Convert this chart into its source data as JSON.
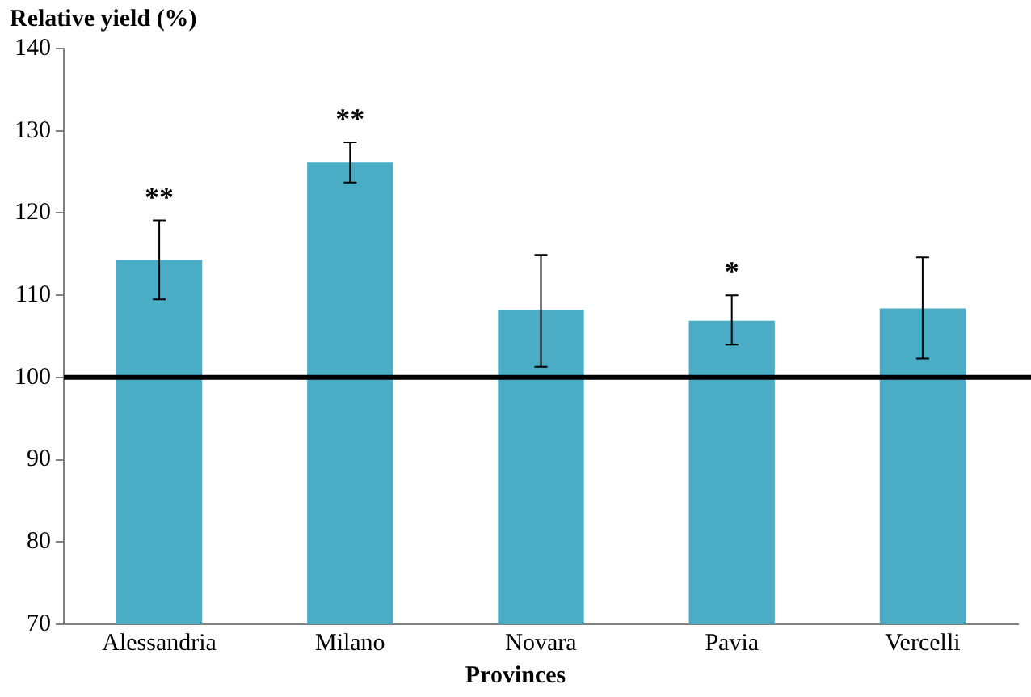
{
  "chart_data": {
    "type": "bar",
    "ylabel": "Relative yield (%)",
    "xlabel": "Provinces",
    "categories": [
      "Alessandria",
      "Milano",
      "Novara",
      "Pavia",
      "Vercelli"
    ],
    "values": [
      114.3,
      126.2,
      108.2,
      106.9,
      108.4
    ],
    "errors": [
      [
        109.5,
        119.1
      ],
      [
        123.7,
        128.6
      ],
      [
        101.3,
        114.9
      ],
      [
        104,
        110
      ],
      [
        102.3,
        114.6
      ]
    ],
    "color": "#4bacc6",
    "ylim": [
      70,
      140
    ],
    "yticks": [
      70,
      80,
      90,
      100,
      110,
      120,
      130,
      140
    ],
    "grid": false,
    "legend": false,
    "ref_lines": [
      {
        "axis": "y",
        "value": 100,
        "color": "#000000",
        "line_style": "solid"
      }
    ],
    "annotations": [
      {
        "text": "**",
        "x": "Alessandria",
        "y": 119.1
      },
      {
        "text": "**",
        "x": "Milano",
        "y": 128.6
      },
      {
        "text": "*",
        "x": "Pavia",
        "y": 110
      }
    ]
  }
}
